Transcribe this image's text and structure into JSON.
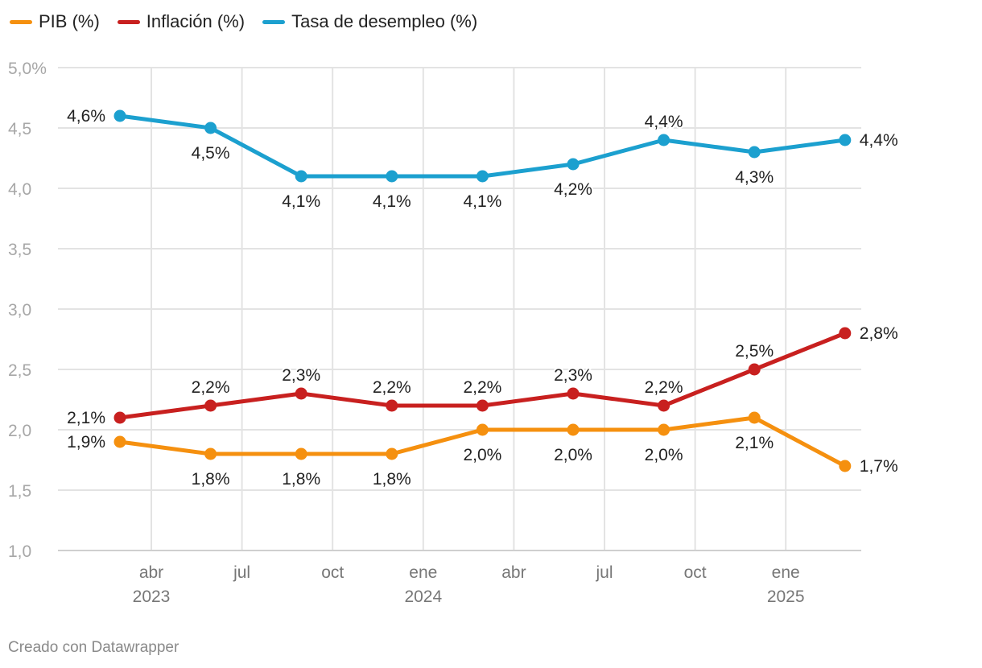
{
  "chart_data": {
    "type": "line",
    "x": [
      "2023-03",
      "2023-06",
      "2023-09",
      "2023-12",
      "2024-03",
      "2024-06",
      "2024-09",
      "2024-12",
      "2025-03"
    ],
    "x_ticks": [
      {
        "label": "abr",
        "year": "2023"
      },
      {
        "label": "jul",
        "year": ""
      },
      {
        "label": "oct",
        "year": ""
      },
      {
        "label": "ene",
        "year": "2024"
      },
      {
        "label": "abr",
        "year": ""
      },
      {
        "label": "jul",
        "year": ""
      },
      {
        "label": "oct",
        "year": ""
      },
      {
        "label": "ene",
        "year": "2025"
      }
    ],
    "y_ticks": [
      "5,0%",
      "4,5",
      "4,0",
      "3,5",
      "3,0",
      "2,5",
      "2,0",
      "1,5",
      "1,0"
    ],
    "y_tick_values": [
      5.0,
      4.5,
      4.0,
      3.5,
      3.0,
      2.5,
      2.0,
      1.5,
      1.0
    ],
    "ylim": [
      1.0,
      5.0
    ],
    "series": [
      {
        "name": "PIB (%)",
        "color": "#f5900f",
        "values": [
          1.9,
          1.8,
          1.8,
          1.8,
          2.0,
          2.0,
          2.0,
          2.1,
          1.7
        ],
        "labels": [
          "1,9%",
          "1,8%",
          "1,8%",
          "1,8%",
          "2,0%",
          "2,0%",
          "2,0%",
          "2,1%",
          "1,7%"
        ]
      },
      {
        "name": "Inflación (%)",
        "color": "#c8201f",
        "values": [
          2.1,
          2.2,
          2.3,
          2.2,
          2.2,
          2.3,
          2.2,
          2.5,
          2.8
        ],
        "labels": [
          "2,1%",
          "2,2%",
          "2,3%",
          "2,2%",
          "2,2%",
          "2,3%",
          "2,2%",
          "2,5%",
          "2,8%"
        ]
      },
      {
        "name": "Tasa de desempleo (%)",
        "color": "#1ca0cf",
        "values": [
          4.6,
          4.5,
          4.1,
          4.1,
          4.1,
          4.2,
          4.4,
          4.3,
          4.4
        ],
        "labels": [
          "4,6%",
          "4,5%",
          "4,1%",
          "4,1%",
          "4,1%",
          "4,2%",
          "4,4%",
          "4,3%",
          "4,4%"
        ]
      }
    ]
  },
  "legend": [
    {
      "label": "PIB (%)",
      "color": "#f5900f"
    },
    {
      "label": "Inflación (%)",
      "color": "#c8201f"
    },
    {
      "label": "Tasa de desempleo (%)",
      "color": "#1ca0cf"
    }
  ],
  "footer": {
    "credit": "Creado con Datawrapper"
  }
}
